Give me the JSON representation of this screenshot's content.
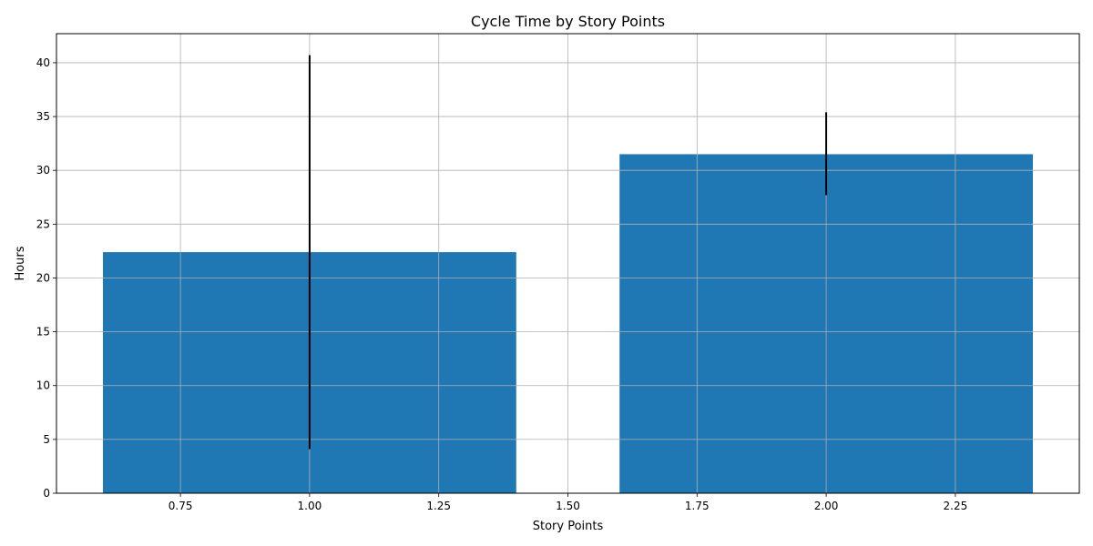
{
  "chart_data": {
    "type": "bar",
    "title": "Cycle Time by Story Points",
    "xlabel": "Story Points",
    "ylabel": "Hours",
    "x": [
      1,
      2
    ],
    "values": [
      22.4,
      31.5
    ],
    "error_low": [
      4.1,
      27.7
    ],
    "error_high": [
      40.7,
      35.4
    ],
    "bar_width": 0.8,
    "xlim": [
      0.51,
      2.49
    ],
    "ylim": [
      0,
      42.7
    ],
    "xticks": [
      0.75,
      1.0,
      1.25,
      1.5,
      1.75,
      2.0,
      2.25
    ],
    "xtick_labels": [
      "0.75",
      "1.00",
      "1.25",
      "1.50",
      "1.75",
      "2.00",
      "2.25"
    ],
    "yticks": [
      0,
      5,
      10,
      15,
      20,
      25,
      30,
      35,
      40
    ],
    "ytick_labels": [
      "0",
      "5",
      "10",
      "15",
      "20",
      "25",
      "30",
      "35",
      "40"
    ],
    "grid": true,
    "bar_color": "#1f77b4",
    "error_color": "#000000"
  }
}
